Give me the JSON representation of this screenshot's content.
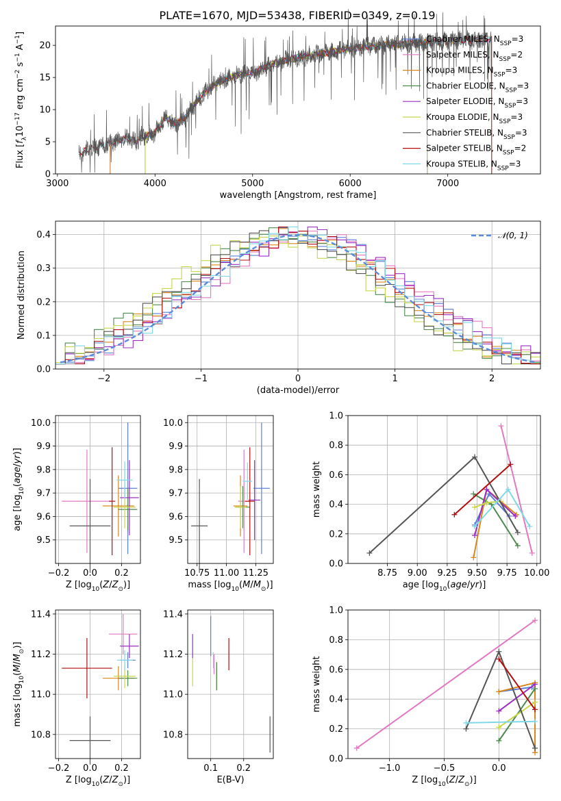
{
  "title": "PLATE=1670, MJD=53438, FIBERID=0349, z=0.19",
  "colors": [
    "#5b7fd4",
    "#e377c2",
    "#d9861b",
    "#4e8a4e",
    "#9a2dc2",
    "#c7d64a",
    "#555555",
    "#b30e0e",
    "#7fd8e8"
  ],
  "chart_data": [
    {
      "type": "line",
      "id": "spectrum",
      "title": "PLATE=1670, MJD=53438, FIBERID=0349, z=0.19",
      "xlabel": "wavelength [Angstrom, rest frame]",
      "ylabel": "Flux [f_λ10^-17 erg cm^-2 s^-1 A^-1]",
      "xlim": [
        2980,
        7950
      ],
      "ylim": [
        0,
        23
      ],
      "xticks": [
        3000,
        4000,
        5000,
        6000,
        7000
      ],
      "yticks": [
        0,
        5,
        10,
        15,
        20
      ],
      "grid": false,
      "legend_position": "top-right",
      "data_range": [
        3220,
        7450
      ],
      "continuum": {
        "x": [
          3220,
          3400,
          3600,
          3700,
          3800,
          3900,
          4000,
          4100,
          4200,
          4300,
          4400,
          4500,
          4600,
          4700,
          4800,
          4900,
          5000,
          5200,
          5400,
          5600,
          5800,
          6000,
          6200,
          6400,
          6600,
          6800,
          7000,
          7200,
          7450
        ],
        "y": [
          3.2,
          4.2,
          5.0,
          5.5,
          5.0,
          5.9,
          6.4,
          8.8,
          7.8,
          8.6,
          10.8,
          12.5,
          13.8,
          14.6,
          15.2,
          15.6,
          15.7,
          17.1,
          17.9,
          18.4,
          19.0,
          19.5,
          19.8,
          20.1,
          20.3,
          20.4,
          20.6,
          20.8,
          21.0
        ]
      },
      "series": [
        {
          "name": "Chabrier MILES, N_SSP=3",
          "start": 3540,
          "end": 7450
        },
        {
          "name": "Salpeter MILES, N_SSP=2",
          "start": 3540,
          "end": 7450
        },
        {
          "name": "Kroupa MILES, N_SSP=3",
          "start": 3540,
          "end": 7450
        },
        {
          "name": "Chabrier ELODIE, N_SSP=3",
          "start": 3900,
          "end": 6790
        },
        {
          "name": "Salpeter ELODIE, N_SSP=3",
          "start": 3900,
          "end": 6790
        },
        {
          "name": "Kroupa ELODIE, N_SSP=3",
          "start": 3900,
          "end": 6790
        },
        {
          "name": "Chabrier STELIB, N_SSP=3",
          "start": 3220,
          "end": 7450
        },
        {
          "name": "Salpeter STELIB, N_SSP=2",
          "start": 3220,
          "end": 7450
        },
        {
          "name": "Kroupa STELIB, N_SSP=3",
          "start": 3220,
          "end": 7450
        }
      ],
      "legend_markup": [
        {
          "pre": "Chabrier MILES, N",
          "sub": "SSP",
          "post": "=3"
        },
        {
          "pre": "Salpeter MILES, N",
          "sub": "SSP",
          "post": "=2"
        },
        {
          "pre": "Kroupa MILES, N",
          "sub": "SSP",
          "post": "=3"
        },
        {
          "pre": "Chabrier ELODIE, N",
          "sub": "SSP",
          "post": "=3"
        },
        {
          "pre": "Salpeter ELODIE, N",
          "sub": "SSP",
          "post": "=3"
        },
        {
          "pre": "Kroupa ELODIE, N",
          "sub": "SSP",
          "post": "=3"
        },
        {
          "pre": "Chabrier STELIB, N",
          "sub": "SSP",
          "post": "=3"
        },
        {
          "pre": "Salpeter STELIB, N",
          "sub": "SSP",
          "post": "=2"
        },
        {
          "pre": "Kroupa STELIB, N",
          "sub": "SSP",
          "post": "=3"
        }
      ]
    },
    {
      "type": "histogram",
      "id": "residuals",
      "xlabel": "(data-model)/error",
      "ylabel": "Normed distribution",
      "xlim": [
        -2.5,
        2.5
      ],
      "ylim": [
        0,
        0.44
      ],
      "xticks": [
        -2,
        -1,
        0,
        1,
        2
      ],
      "yticks": [
        0.0,
        0.1,
        0.2,
        0.3,
        0.4
      ],
      "grid": true,
      "bin_width": 0.1,
      "legend_position": "top-right",
      "reference": {
        "name": "N(0,1)",
        "mean": 0,
        "sigma": 1
      }
    },
    {
      "type": "scatter",
      "id": "age_vs_Z",
      "xlabel": "Z [log10(Z/Z☉)]",
      "ylabel": "age  [log10(age/yr)]",
      "xlim": [
        -0.22,
        0.32
      ],
      "ylim": [
        9.4,
        10.03
      ],
      "xticks": [
        -0.2,
        0.0,
        0.2
      ],
      "yticks": [
        9.5,
        9.6,
        9.7,
        9.8,
        9.9,
        10.0
      ],
      "grid": true,
      "points": [
        {
          "x": 0.24,
          "xerr": 0.06,
          "y": 9.72,
          "yerr": 0.28
        },
        {
          "x": -0.02,
          "xerr": 0.16,
          "y": 9.665,
          "yerr": 0.22
        },
        {
          "x": 0.18,
          "xerr": 0.1,
          "y": 9.645,
          "yerr": 0.13
        },
        {
          "x": 0.24,
          "xerr": 0.06,
          "y": 9.63,
          "yerr": 0.09
        },
        {
          "x": 0.25,
          "xerr": 0.06,
          "y": 9.68,
          "yerr": 0.16
        },
        {
          "x": 0.22,
          "xerr": 0.07,
          "y": 9.64,
          "yerr": 0.09
        },
        {
          "x": 0.0,
          "xerr": 0.13,
          "y": 9.56,
          "yerr": 0.2
        },
        {
          "x": 0.14,
          "xerr": 0.02,
          "y": 9.665,
          "yerr": 0.23
        },
        {
          "x": 0.22,
          "xerr": 0.05,
          "y": 9.755,
          "yerr": 0.08
        }
      ]
    },
    {
      "type": "scatter",
      "id": "age_vs_mass",
      "xlabel": "mass [log10(M/M☉)]",
      "ylabel": "",
      "xlim": [
        10.67,
        11.4
      ],
      "ylim": [
        9.4,
        10.03
      ],
      "xticks": [
        10.75,
        11.0,
        11.25
      ],
      "yticks": [
        9.5,
        9.6,
        9.7,
        9.8,
        9.9,
        10.0
      ],
      "grid": true,
      "points": [
        {
          "x": 11.3,
          "xerr": 0.07,
          "y": 9.72,
          "yerr": 0.28
        },
        {
          "x": 11.15,
          "xerr": 0.05,
          "y": 9.665,
          "yerr": 0.22
        },
        {
          "x": 11.12,
          "xerr": 0.06,
          "y": 9.645,
          "yerr": 0.13
        },
        {
          "x": 11.14,
          "xerr": 0.06,
          "y": 9.64,
          "yerr": 0.09
        },
        {
          "x": 11.24,
          "xerr": 0.05,
          "y": 9.67,
          "yerr": 0.17
        },
        {
          "x": 11.12,
          "xerr": 0.05,
          "y": 9.64,
          "yerr": 0.09
        },
        {
          "x": 10.77,
          "xerr": 0.07,
          "y": 9.56,
          "yerr": 0.2
        },
        {
          "x": 11.2,
          "xerr": 0.04,
          "y": 9.665,
          "yerr": 0.23
        },
        {
          "x": 11.18,
          "xerr": 0.04,
          "y": 9.75,
          "yerr": 0.08
        }
      ]
    },
    {
      "type": "line",
      "id": "massweight_vs_age",
      "xlabel": "age  [log10(age/yr)]",
      "ylabel": "mass weight",
      "xlim": [
        8.42,
        10.03
      ],
      "ylim": [
        0,
        1.0
      ],
      "xticks": [
        8.75,
        9.0,
        9.25,
        9.5,
        9.75,
        10.0
      ],
      "yticks": [
        0.0,
        0.2,
        0.4,
        0.6,
        0.8,
        1.0
      ],
      "grid": true,
      "series": [
        {
          "x": [
            9.48,
            9.6,
            9.77
          ],
          "y": [
            0.26,
            0.47,
            0.32
          ]
        },
        {
          "x": [
            9.7,
            9.96
          ],
          "y": [
            0.93,
            0.07
          ]
        },
        {
          "x": [
            9.47,
            9.58,
            9.83
          ],
          "y": [
            0.04,
            0.5,
            0.33
          ]
        },
        {
          "x": [
            9.47,
            9.62,
            9.84
          ],
          "y": [
            0.47,
            0.4,
            0.12
          ]
        },
        {
          "x": [
            9.48,
            9.58,
            9.82
          ],
          "y": [
            0.19,
            0.5,
            0.32
          ]
        },
        {
          "x": [
            9.48,
            9.58,
            9.7
          ],
          "y": [
            0.38,
            0.41,
            0.42
          ]
        },
        {
          "x": [
            8.6,
            9.48,
            9.84
          ],
          "y": [
            0.07,
            0.72,
            0.21
          ]
        },
        {
          "x": [
            9.31,
            9.78
          ],
          "y": [
            0.33,
            0.67
          ]
        },
        {
          "x": [
            9.48,
            9.76,
            9.94
          ],
          "y": [
            0.25,
            0.5,
            0.25
          ]
        }
      ]
    },
    {
      "type": "scatter",
      "id": "mass_vs_Z",
      "xlabel": "Z [log10(Z/Z☉)]",
      "ylabel": "mass [log10(M/M☉)]",
      "xlim": [
        -0.22,
        0.32
      ],
      "ylim": [
        10.68,
        11.42
      ],
      "xticks": [
        -0.2,
        0.0,
        0.2
      ],
      "yticks": [
        10.8,
        11.0,
        11.2,
        11.4
      ],
      "grid": true,
      "points": [
        {
          "x": 0.24,
          "xerr": 0.05,
          "y": 11.17,
          "yerr": 0.04
        },
        {
          "x": 0.21,
          "xerr": 0.09,
          "y": 11.3,
          "yerr": 0.1
        },
        {
          "x": 0.18,
          "xerr": 0.1,
          "y": 11.08,
          "yerr": 0.06
        },
        {
          "x": 0.24,
          "xerr": 0.06,
          "y": 11.08,
          "yerr": 0.04
        },
        {
          "x": 0.25,
          "xerr": 0.06,
          "y": 11.24,
          "yerr": 0.06
        },
        {
          "x": 0.22,
          "xerr": 0.07,
          "y": 11.09,
          "yerr": 0.06
        },
        {
          "x": 0.0,
          "xerr": 0.13,
          "y": 10.77,
          "yerr": 0.12
        },
        {
          "x": -0.02,
          "xerr": 0.16,
          "y": 11.13,
          "yerr": 0.15
        },
        {
          "x": 0.22,
          "xerr": 0.05,
          "y": 11.17,
          "yerr": 0.05
        }
      ]
    },
    {
      "type": "scatter",
      "id": "mass_vs_ebv",
      "xlabel": "E(B-V)",
      "ylabel": "",
      "xlim": [
        0.03,
        0.29
      ],
      "ylim": [
        10.68,
        11.42
      ],
      "xticks": [
        0.1,
        0.2
      ],
      "yticks": [
        10.8,
        11.0,
        11.2,
        11.4
      ],
      "grid": true,
      "points": [
        {
          "x": 0.1,
          "y": 11.29,
          "yerr": 0.1
        },
        {
          "x": 0.11,
          "y": 11.15,
          "yerr": 0.05
        },
        {
          "x": 0.118,
          "y": 11.09,
          "yerr": 0.07
        },
        {
          "x": 0.118,
          "y": 11.09,
          "yerr": 0.07
        },
        {
          "x": 0.045,
          "y": 11.24,
          "yerr": 0.06
        },
        {
          "x": 0.045,
          "y": 11.11,
          "yerr": 0.07
        },
        {
          "x": 0.28,
          "y": 10.8,
          "yerr": 0.09
        },
        {
          "x": 0.155,
          "y": 11.2,
          "yerr": 0.08
        },
        {
          "x": 0.108,
          "y": 11.17,
          "yerr": 0.04
        }
      ]
    },
    {
      "type": "line",
      "id": "massweight_vs_Z",
      "xlabel": "Z [log10(Z/Z☉)]",
      "ylabel": "mass weight",
      "xlim": [
        -1.38,
        0.38
      ],
      "ylim": [
        0,
        1.0
      ],
      "xticks": [
        -1.0,
        -0.5,
        0.0
      ],
      "yticks": [
        0.0,
        0.2,
        0.4,
        0.6,
        0.8,
        1.0
      ],
      "grid": true,
      "series": [
        {
          "x": [
            0.0,
            0.3
          ],
          "y": [
            0.45,
            0.48
          ]
        },
        {
          "x": [
            -1.3,
            0.33
          ],
          "y": [
            0.07,
            0.93
          ]
        },
        {
          "x": [
            0.0,
            0.33,
            0.33
          ],
          "y": [
            0.45,
            0.51,
            0.04
          ]
        },
        {
          "x": [
            0.0,
            0.33
          ],
          "y": [
            0.12,
            0.47
          ]
        },
        {
          "x": [
            0.0,
            0.33
          ],
          "y": [
            0.32,
            0.5
          ]
        },
        {
          "x": [
            0.0,
            0.33
          ],
          "y": [
            0.21,
            0.38
          ]
        },
        {
          "x": [
            -0.3,
            0.0,
            0.33
          ],
          "y": [
            0.2,
            0.72,
            0.07
          ]
        },
        {
          "x": [
            0.0,
            0.33
          ],
          "y": [
            0.67,
            0.33
          ]
        },
        {
          "x": [
            -0.3,
            0.33
          ],
          "y": [
            0.24,
            0.25
          ]
        }
      ]
    }
  ]
}
